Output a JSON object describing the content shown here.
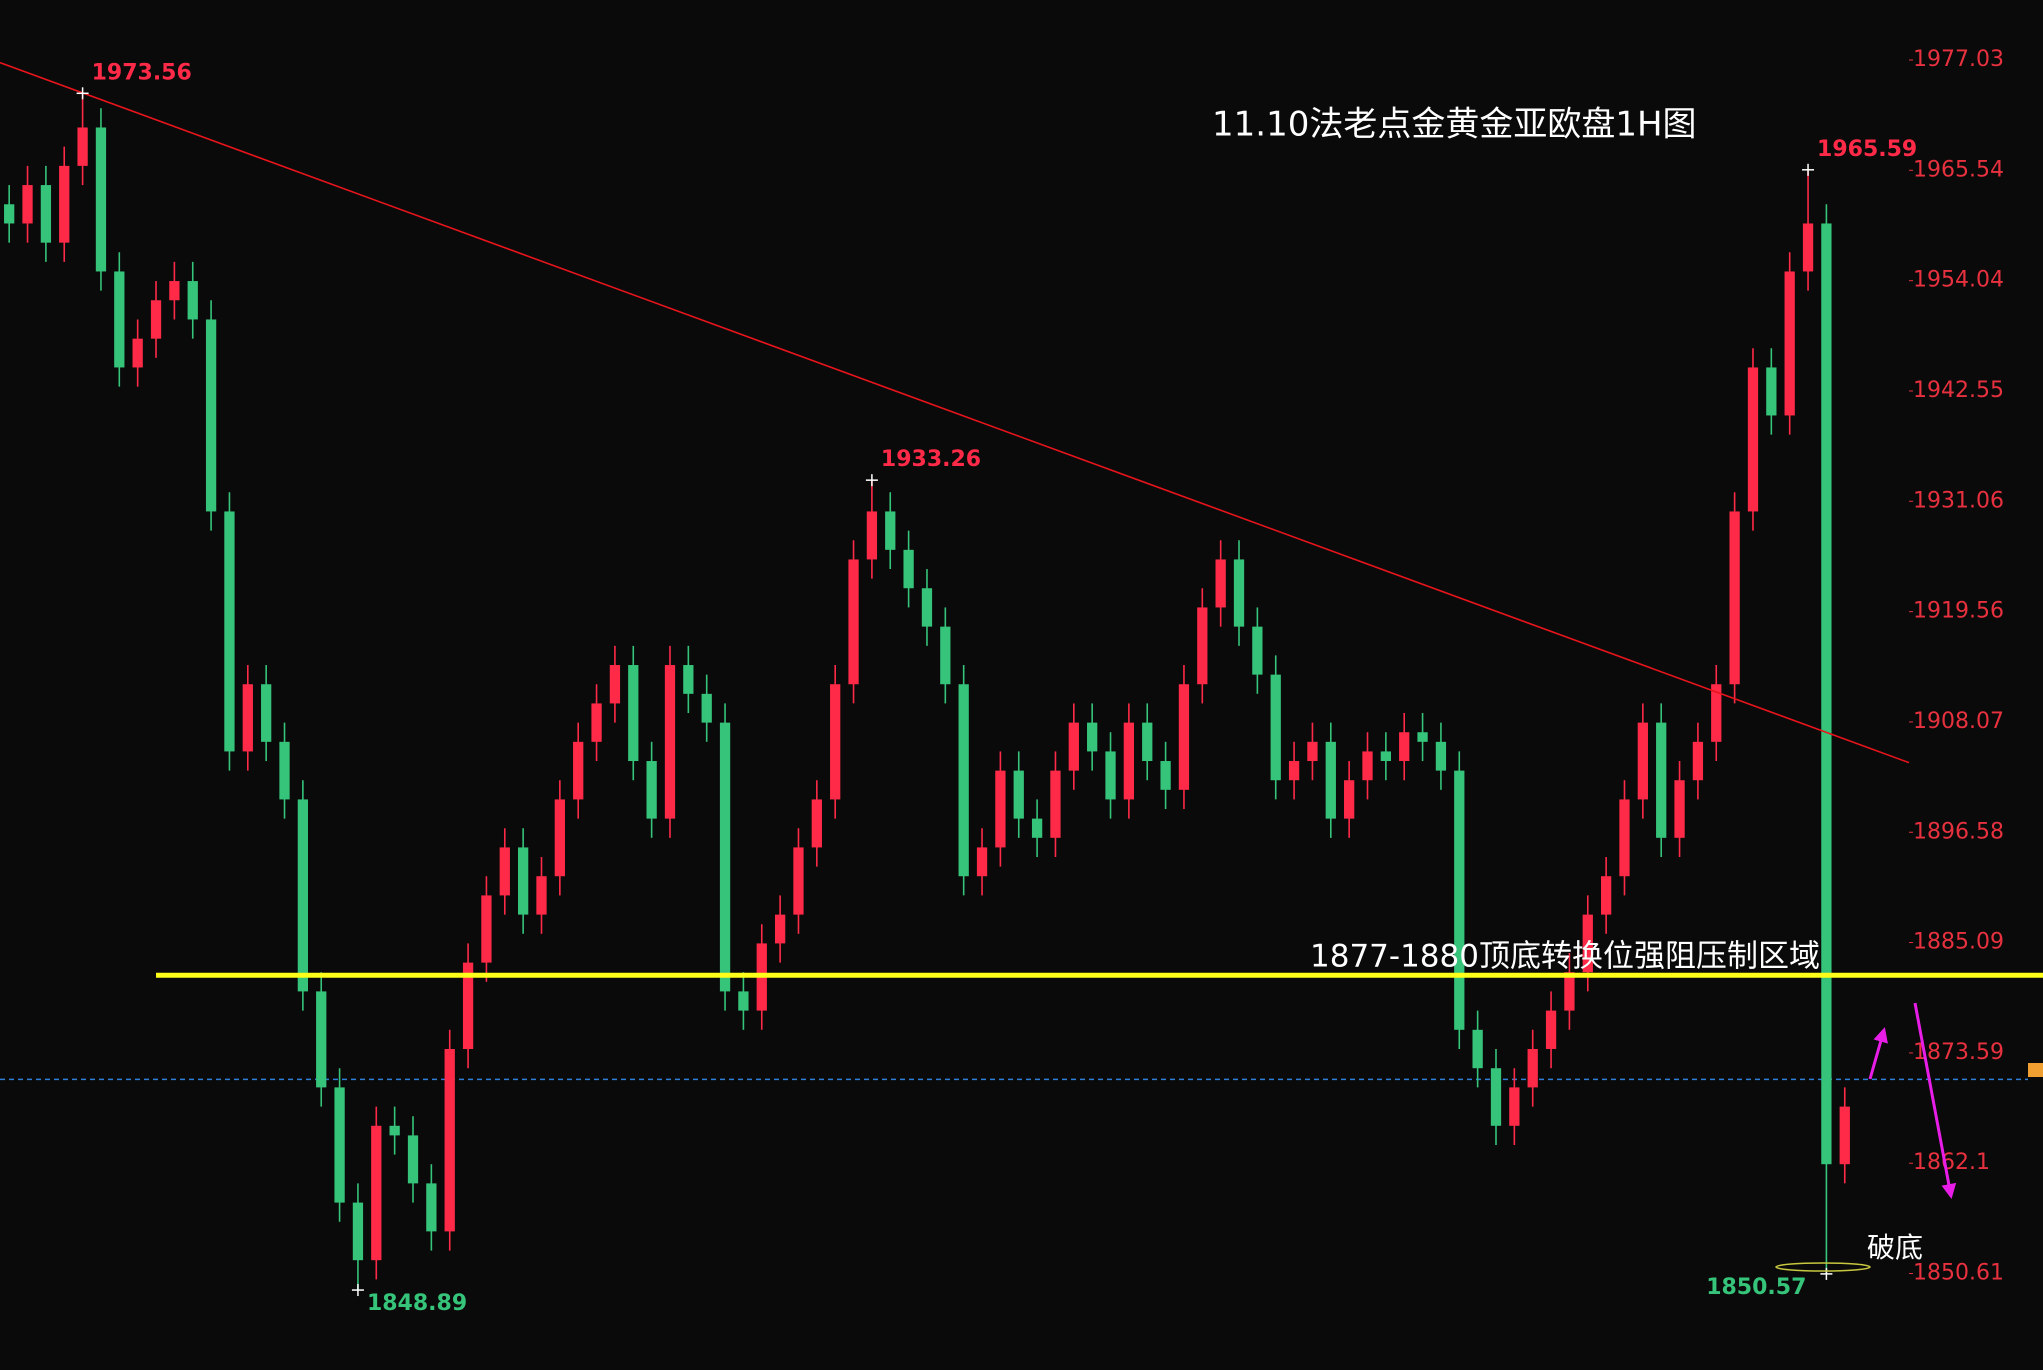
{
  "chart_data": {
    "type": "candlestick",
    "title": "11.10法老点金黄金亚欧盘1H图",
    "zone_label": "1877-1880顶底转换位强阻压制区域",
    "break_label": "破底",
    "up_color": "#ff2a48",
    "down_color": "#35c47a",
    "open": [
      1962,
      1960,
      1964,
      1958,
      1966,
      1970,
      1955,
      1945,
      1948,
      1952,
      1954,
      1950,
      1930,
      1905,
      1912,
      1906,
      1900,
      1880,
      1870,
      1858,
      1852,
      1866,
      1865,
      1860,
      1855,
      1874,
      1883,
      1890,
      1895,
      1888,
      1892,
      1900,
      1906,
      1910,
      1914,
      1904,
      1898,
      1914,
      1911,
      1908,
      1880,
      1878,
      1885,
      1888,
      1895,
      1900,
      1912,
      1925,
      1930,
      1926,
      1922,
      1918,
      1912,
      1892,
      1895,
      1903,
      1898,
      1896,
      1903,
      1908,
      1905,
      1900,
      1908,
      1904,
      1901,
      1912,
      1920,
      1925,
      1918,
      1913,
      1902,
      1904,
      1906,
      1898,
      1902,
      1905,
      1904,
      1907,
      1906,
      1903,
      1876,
      1872,
      1866,
      1870,
      1874,
      1878,
      1882,
      1888,
      1892,
      1900,
      1908,
      1896,
      1902,
      1906,
      1912,
      1930,
      1945,
      1940,
      1955,
      1960,
      1862
    ],
    "high": [
      1964,
      1966,
      1966,
      1968,
      1973.56,
      1972,
      1957,
      1950,
      1954,
      1956,
      1956,
      1952,
      1932,
      1914,
      1914,
      1908,
      1902,
      1882,
      1872,
      1860,
      1868,
      1868,
      1867,
      1862,
      1876,
      1885,
      1892,
      1897,
      1897,
      1894,
      1902,
      1908,
      1912,
      1916,
      1916,
      1906,
      1916,
      1916,
      1913,
      1910,
      1882,
      1887,
      1890,
      1897,
      1902,
      1914,
      1927,
      1933.26,
      1932,
      1928,
      1924,
      1920,
      1914,
      1897,
      1905,
      1905,
      1900,
      1905,
      1910,
      1910,
      1907,
      1910,
      1910,
      1906,
      1914,
      1922,
      1927,
      1927,
      1920,
      1915,
      1906,
      1908,
      1908,
      1904,
      1907,
      1907,
      1909,
      1909,
      1908,
      1905,
      1878,
      1874,
      1872,
      1876,
      1880,
      1884,
      1890,
      1894,
      1902,
      1910,
      1910,
      1904,
      1908,
      1914,
      1932,
      1947,
      1947,
      1957,
      1965.59,
      1962,
      1870
    ],
    "low": [
      1958,
      1958,
      1956,
      1956,
      1964,
      1953,
      1943,
      1943,
      1946,
      1950,
      1948,
      1928,
      1903,
      1903,
      1904,
      1898,
      1878,
      1868,
      1856,
      1848.89,
      1850,
      1863,
      1858,
      1853,
      1853,
      1872,
      1881,
      1888,
      1886,
      1886,
      1890,
      1898,
      1904,
      1908,
      1902,
      1896,
      1896,
      1909,
      1906,
      1878,
      1876,
      1876,
      1883,
      1886,
      1893,
      1898,
      1910,
      1923,
      1924,
      1920,
      1916,
      1910,
      1890,
      1890,
      1893,
      1896,
      1894,
      1894,
      1901,
      1903,
      1898,
      1898,
      1902,
      1899,
      1899,
      1910,
      1918,
      1916,
      1911,
      1900,
      1900,
      1902,
      1896,
      1896,
      1900,
      1902,
      1902,
      1904,
      1901,
      1874,
      1870,
      1864,
      1864,
      1868,
      1872,
      1876,
      1880,
      1886,
      1890,
      1898,
      1894,
      1894,
      1900,
      1904,
      1910,
      1928,
      1938,
      1938,
      1953,
      1850.57,
      1860
    ],
    "close": [
      1960,
      1964,
      1958,
      1966,
      1970,
      1955,
      1945,
      1948,
      1952,
      1954,
      1950,
      1930,
      1905,
      1912,
      1906,
      1900,
      1880,
      1870,
      1858,
      1852,
      1866,
      1865,
      1860,
      1855,
      1874,
      1883,
      1890,
      1895,
      1888,
      1892,
      1900,
      1906,
      1910,
      1914,
      1904,
      1898,
      1914,
      1911,
      1908,
      1880,
      1878,
      1885,
      1888,
      1895,
      1900,
      1912,
      1925,
      1930,
      1926,
      1922,
      1918,
      1912,
      1892,
      1895,
      1903,
      1898,
      1896,
      1903,
      1908,
      1905,
      1900,
      1908,
      1904,
      1901,
      1912,
      1920,
      1925,
      1918,
      1913,
      1902,
      1904,
      1906,
      1898,
      1902,
      1905,
      1904,
      1907,
      1906,
      1903,
      1876,
      1872,
      1866,
      1870,
      1874,
      1878,
      1882,
      1888,
      1892,
      1900,
      1908,
      1896,
      1902,
      1906,
      1912,
      1930,
      1945,
      1940,
      1955,
      1960,
      1862,
      1868
    ],
    "labeled_highs": [
      4,
      47,
      98
    ],
    "labeled_lows": [
      19,
      99
    ],
    "xlim": [
      -0.5,
      103.5
    ],
    "ylim": [
      1840.56,
      1983.28
    ],
    "yticks": [
      1850.61,
      1862.1,
      1873.59,
      1885.09,
      1896.58,
      1908.07,
      1919.56,
      1931.06,
      1942.55,
      1954.04,
      1965.54,
      1977.03
    ],
    "trendline": {
      "color": "#e8141c",
      "x": [
        -0.5,
        103.5
      ],
      "y": [
        1976.76,
        1903.83
      ]
    },
    "resistance_line": {
      "color": "#ffff1a",
      "value": 1881.68,
      "start": 8
    },
    "current_price_line": {
      "color": "#2f7fd8",
      "value": 1870.83
    }
  }
}
